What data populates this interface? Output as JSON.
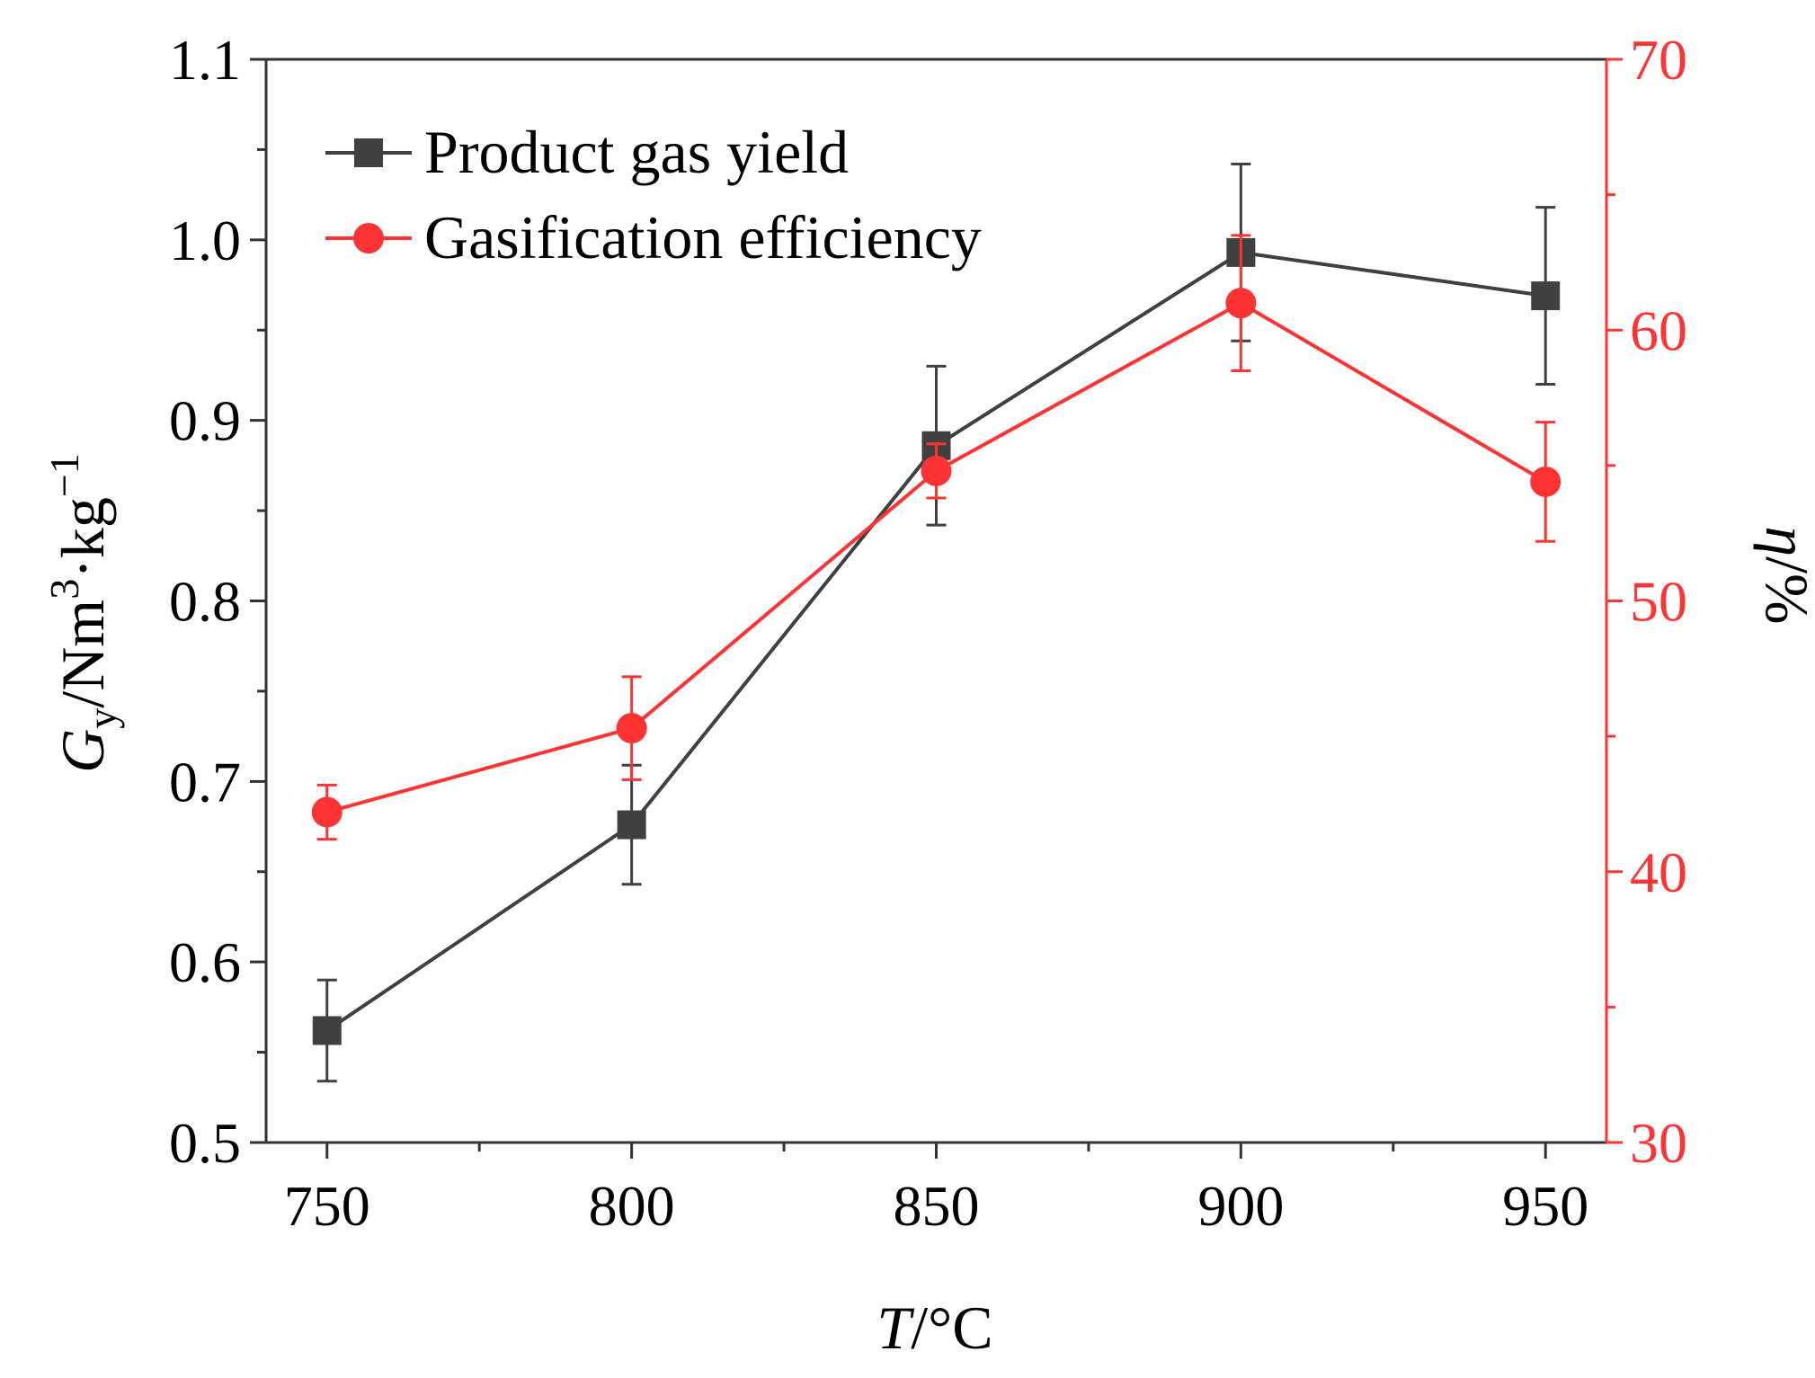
{
  "chart_data": {
    "type": "line",
    "title": "",
    "x": [
      750,
      800,
      850,
      900,
      950
    ],
    "xlim": [
      740,
      960
    ],
    "xticks": [
      750,
      800,
      850,
      900,
      950
    ],
    "xlabel": {
      "italic": "T",
      "rest": "/°C"
    },
    "y_left": {
      "lim": [
        0.5,
        1.1
      ],
      "ticks": [
        0.5,
        0.6,
        0.7,
        0.8,
        0.9,
        1.0,
        1.1
      ],
      "tick_labels": [
        "0.5",
        "0.6",
        "0.7",
        "0.8",
        "0.9",
        "1.0",
        "1.1"
      ],
      "label": {
        "italic": "G",
        "sub": "y",
        "mid": "/Nm",
        "sup1": "3",
        "mid2": "·kg",
        "sup2": "−1"
      }
    },
    "y_right": {
      "lim": [
        30,
        70
      ],
      "ticks": [
        30,
        40,
        50,
        60,
        70
      ],
      "tick_labels": [
        "30",
        "40",
        "50",
        "60",
        "70"
      ],
      "label": {
        "italic": "η",
        "rest": "/%"
      },
      "color": "#ff3333"
    },
    "series": [
      {
        "name": "Product gas yield",
        "axis": "left",
        "marker": "square",
        "color": "#404040",
        "values": [
          0.562,
          0.676,
          0.886,
          0.993,
          0.969
        ],
        "errors": [
          0.028,
          0.033,
          0.044,
          0.049,
          0.049
        ]
      },
      {
        "name": "Gasification efficiency",
        "axis": "right",
        "marker": "circle",
        "color": "#ff3333",
        "values": [
          42.2,
          45.3,
          54.8,
          61.0,
          54.4
        ],
        "errors": [
          1.0,
          1.9,
          1.0,
          2.5,
          2.2
        ]
      }
    ],
    "legend": {
      "position": "top-left"
    }
  }
}
